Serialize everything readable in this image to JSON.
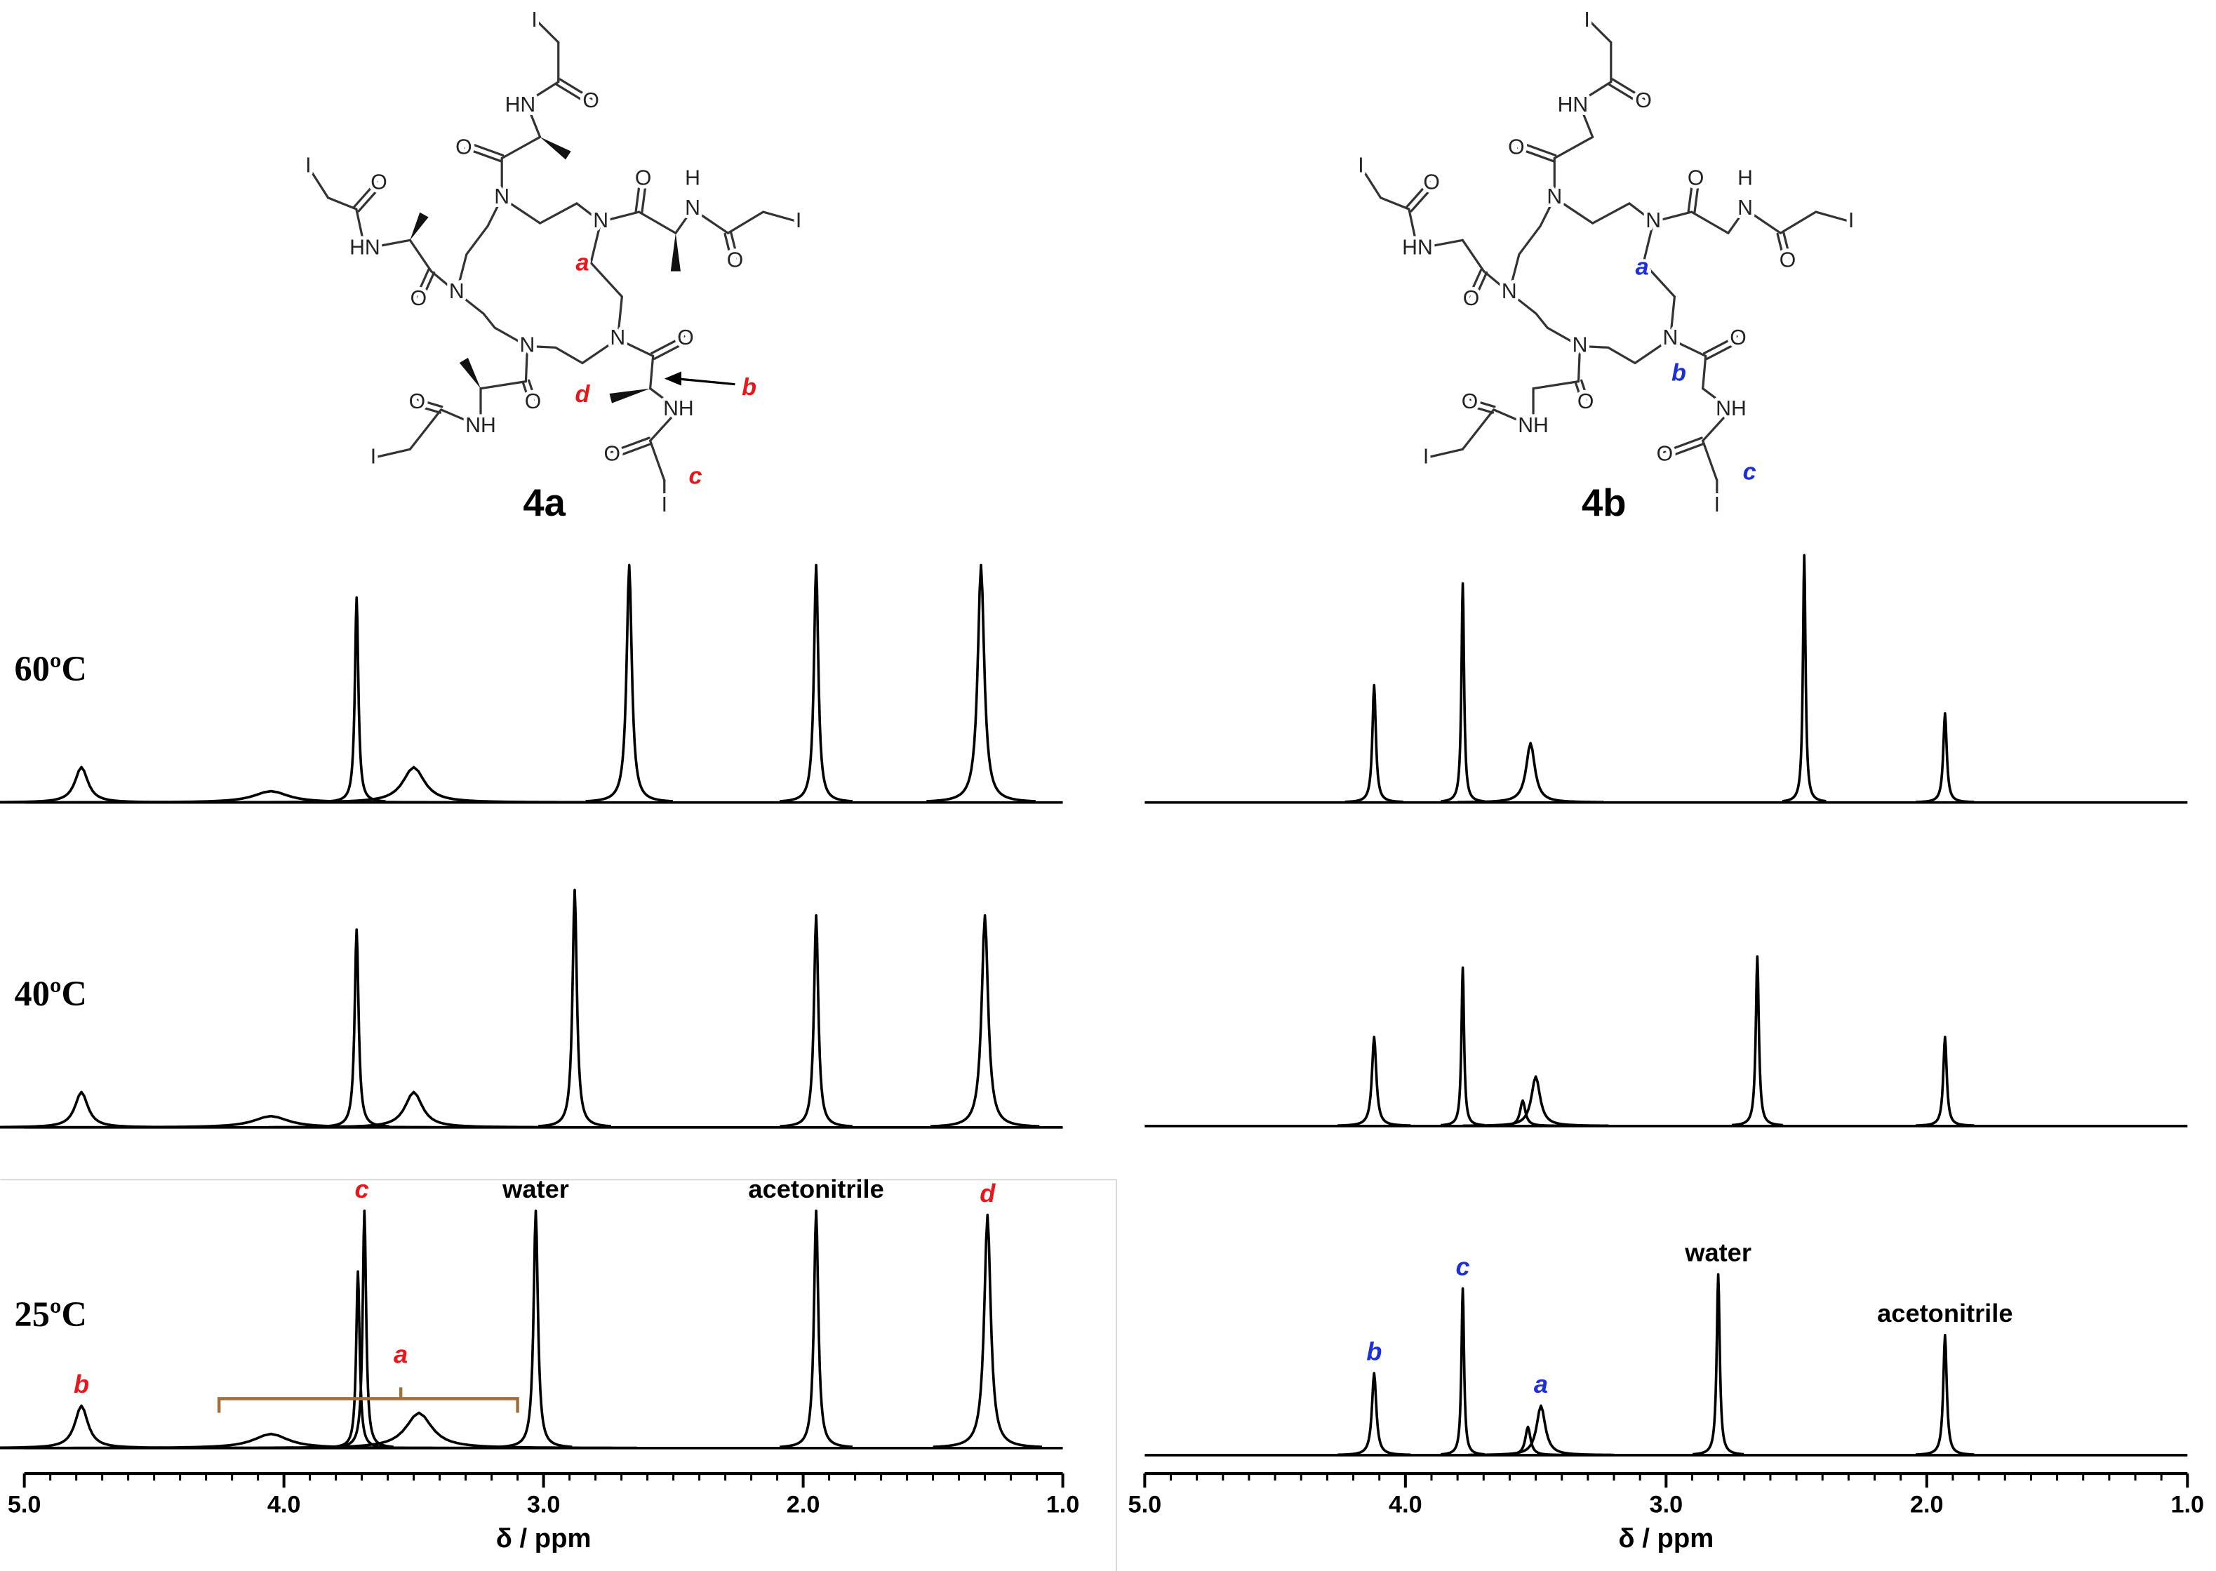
{
  "structures": [
    {
      "label": "4a",
      "atoms": [
        "I",
        "HN",
        "O",
        "O",
        "N",
        "N",
        "O",
        "H",
        "N",
        "O",
        "I",
        "I",
        "O",
        "HN",
        "O",
        "N",
        "N",
        "N",
        "O",
        "NH",
        "O",
        "I",
        "O",
        "NH",
        "O",
        "I"
      ],
      "site_labels": [
        "a",
        "b",
        "c",
        "d"
      ],
      "site_color": "#e8171c",
      "stereo_methyls": true
    },
    {
      "label": "4b",
      "atoms": [
        "I",
        "HN",
        "O",
        "O",
        "N",
        "N",
        "O",
        "H",
        "N",
        "O",
        "I",
        "I",
        "O",
        "HN",
        "O",
        "N",
        "N",
        "N",
        "O",
        "NH",
        "O",
        "I",
        "O",
        "NH",
        "O",
        "I"
      ],
      "site_labels": [
        "a",
        "b",
        "c"
      ],
      "site_color": "#1c2fd8",
      "stereo_methyls": false
    }
  ],
  "chart_data": [
    {
      "type": "spectrum",
      "x_label": "δ / ppm",
      "xlim": [
        5.0,
        1.0
      ],
      "xticks": [
        {
          "value": 5,
          "label": "5.0"
        },
        {
          "value": 4,
          "label": "4.0"
        },
        {
          "value": 3,
          "label": "3.0"
        },
        {
          "value": 2,
          "label": "2.0"
        },
        {
          "value": 1,
          "label": "1.0"
        }
      ],
      "minor_tick_interval": 0.1,
      "ylim": [
        0,
        175
      ],
      "color": "#000000",
      "traces": [
        {
          "name": "60ºC",
          "peaks": [
            4.78,
            4.05,
            3.72,
            3.5,
            2.67,
            1.95,
            1.315
          ],
          "heights": [
            25,
            8,
            145,
            25,
            168,
            168,
            168
          ],
          "widths": [
            0.03,
            0.08,
            0.008,
            0.05,
            0.012,
            0.01,
            0.015
          ]
        },
        {
          "name": "40ºC",
          "peaks": [
            4.78,
            4.05,
            3.72,
            3.5,
            2.88,
            1.95,
            1.3
          ],
          "heights": [
            25,
            8,
            140,
            25,
            168,
            150,
            150
          ],
          "widths": [
            0.03,
            0.08,
            0.009,
            0.04,
            0.01,
            0.01,
            0.015
          ]
        },
        {
          "name": "25ºC",
          "peaks": [
            4.78,
            4.05,
            3.715,
            3.69,
            3.48,
            3.03,
            1.95,
            1.29
          ],
          "heights": [
            30,
            10,
            125,
            168,
            25,
            168,
            168,
            165
          ],
          "widths": [
            0.03,
            0.08,
            0.008,
            0.008,
            0.06,
            0.01,
            0.01,
            0.015
          ],
          "annotations": [
            {
              "text": "b",
              "x": 4.78,
              "color": "#e8171c"
            },
            {
              "text": "c",
              "x": 3.7,
              "color": "#e8171c"
            },
            {
              "text": "a",
              "x": 3.55,
              "color": "#e8171c",
              "span": [
                4.25,
                3.1
              ],
              "span_color": "#a0703c"
            },
            {
              "text": "water",
              "x": 3.03,
              "color": "#000000"
            },
            {
              "text": "acetonitrile",
              "x": 1.95,
              "color": "#000000"
            },
            {
              "text": "d",
              "x": 1.29,
              "color": "#e8171c"
            }
          ]
        }
      ]
    },
    {
      "type": "spectrum",
      "x_label": "δ / ppm",
      "xlim": [
        5.0,
        1.0
      ],
      "xticks": [
        {
          "value": 5,
          "label": "5.0"
        },
        {
          "value": 4,
          "label": "4.0"
        },
        {
          "value": 3,
          "label": "3.0"
        },
        {
          "value": 2,
          "label": "2.0"
        },
        {
          "value": 1,
          "label": "1.0"
        }
      ],
      "minor_tick_interval": 0.1,
      "ylim": [
        0,
        175
      ],
      "color": "#000000",
      "traces": [
        {
          "peaks": [
            4.12,
            3.78,
            3.52,
            2.47,
            1.93
          ],
          "heights": [
            83,
            155,
            42,
            175,
            63
          ],
          "widths": [
            0.008,
            0.006,
            0.02,
            0.006,
            0.008
          ]
        },
        {
          "peaks": [
            4.12,
            3.78,
            3.55,
            3.5,
            2.65,
            1.93
          ],
          "heights": [
            63,
            112,
            18,
            35,
            120,
            63
          ],
          "widths": [
            0.01,
            0.006,
            0.012,
            0.02,
            0.007,
            0.008
          ]
        },
        {
          "peaks": [
            4.12,
            3.78,
            3.53,
            3.48,
            2.8,
            1.93
          ],
          "heights": [
            58,
            118,
            20,
            35,
            128,
            85
          ],
          "widths": [
            0.01,
            0.006,
            0.012,
            0.02,
            0.007,
            0.008
          ],
          "annotations": [
            {
              "text": "b",
              "x": 4.12,
              "color": "#1c2fd8"
            },
            {
              "text": "c",
              "x": 3.78,
              "color": "#1c2fd8"
            },
            {
              "text": "a",
              "x": 3.48,
              "color": "#1c2fd8"
            },
            {
              "text": "water",
              "x": 2.8,
              "color": "#000000"
            },
            {
              "text": "acetonitrile",
              "x": 1.93,
              "color": "#000000"
            }
          ]
        }
      ]
    }
  ]
}
